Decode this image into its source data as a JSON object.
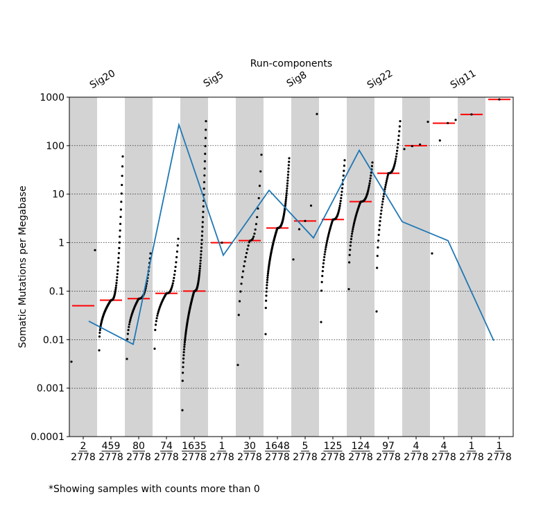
{
  "chart_data": {
    "type": "scatter",
    "title": "Run-components",
    "ylabel": "Somatic Mutations per Megabase",
    "yscale": "log",
    "ylim": [
      0.0001,
      1000
    ],
    "y_ticks": [
      "0.0001",
      "0.001",
      "0.01",
      "0.1",
      "1",
      "10",
      "100",
      "1000"
    ],
    "y_tick_values": [
      0.0001,
      0.001,
      0.01,
      0.1,
      1,
      10,
      100,
      1000
    ],
    "grid": "horizontal dotted",
    "top_labels": [
      {
        "text": "Sig20",
        "group": 1.5
      },
      {
        "text": "Sig5",
        "group": 5.5
      },
      {
        "text": "Sig8",
        "group": 8.5
      },
      {
        "text": "Sig22",
        "group": 11.5
      },
      {
        "text": "Sig11",
        "group": 14.5
      }
    ],
    "groups": [
      {
        "count": "2",
        "total": "2778",
        "median": 0.05,
        "min": 0.0035,
        "max": 0.7,
        "n_points": 2
      },
      {
        "count": "459",
        "total": "2778",
        "median": 0.065,
        "min": 0.006,
        "max": 60,
        "n_points": 80
      },
      {
        "count": "80",
        "total": "2778",
        "median": 0.07,
        "min": 0.004,
        "max": 0.6,
        "n_points": 50
      },
      {
        "count": "74",
        "total": "2778",
        "median": 0.09,
        "min": 0.0065,
        "max": 1.2,
        "n_points": 45
      },
      {
        "count": "1635",
        "total": "2778",
        "median": 0.1,
        "min": 0.00035,
        "max": 320,
        "n_points": 110
      },
      {
        "count": "1",
        "total": "2778",
        "median": 1.0,
        "min": 1.0,
        "max": 1.0,
        "n_points": 1
      },
      {
        "count": "30",
        "total": "2778",
        "median": 1.1,
        "min": 0.003,
        "max": 65,
        "n_points": 28
      },
      {
        "count": "1648",
        "total": "2778",
        "median": 2.0,
        "min": 0.013,
        "max": 55,
        "n_points": 110
      },
      {
        "count": "5",
        "total": "2778",
        "median": 2.8,
        "min": 0.45,
        "max": 450,
        "n_points": 5
      },
      {
        "count": "125",
        "total": "2778",
        "median": 3.0,
        "min": 0.023,
        "max": 50,
        "n_points": 60
      },
      {
        "count": "124",
        "total": "2778",
        "median": 7.0,
        "min": 0.11,
        "max": 45,
        "n_points": 60
      },
      {
        "count": "97",
        "total": "2778",
        "median": 27,
        "min": 0.038,
        "max": 320,
        "n_points": 55
      },
      {
        "count": "4",
        "total": "2778",
        "median": 100,
        "min": 85,
        "max": 310,
        "n_points": 4
      },
      {
        "count": "4",
        "total": "2778",
        "median": 290,
        "min": 0.6,
        "max": 340,
        "n_points": 4
      },
      {
        "count": "1",
        "total": "2778",
        "median": 440,
        "min": 440,
        "max": 440,
        "n_points": 1
      },
      {
        "count": "1",
        "total": "2778",
        "median": 900,
        "min": 900,
        "max": 900,
        "n_points": 1
      }
    ],
    "line_series": {
      "name": "",
      "points": [
        [
          0.7,
          0.024
        ],
        [
          2.3,
          0.008
        ],
        [
          3.95,
          270
        ],
        [
          5.55,
          0.55
        ],
        [
          7.2,
          12
        ],
        [
          8.8,
          1.25
        ],
        [
          10.45,
          80
        ],
        [
          12.0,
          2.7
        ],
        [
          13.65,
          1.1
        ],
        [
          15.3,
          0.0095
        ]
      ]
    },
    "colors": {
      "band": "#d3d3d3",
      "median": "#ff0000",
      "line": "#1f77b4",
      "points": "#000000"
    }
  },
  "footnote": "*Showing samples with counts more than 0"
}
